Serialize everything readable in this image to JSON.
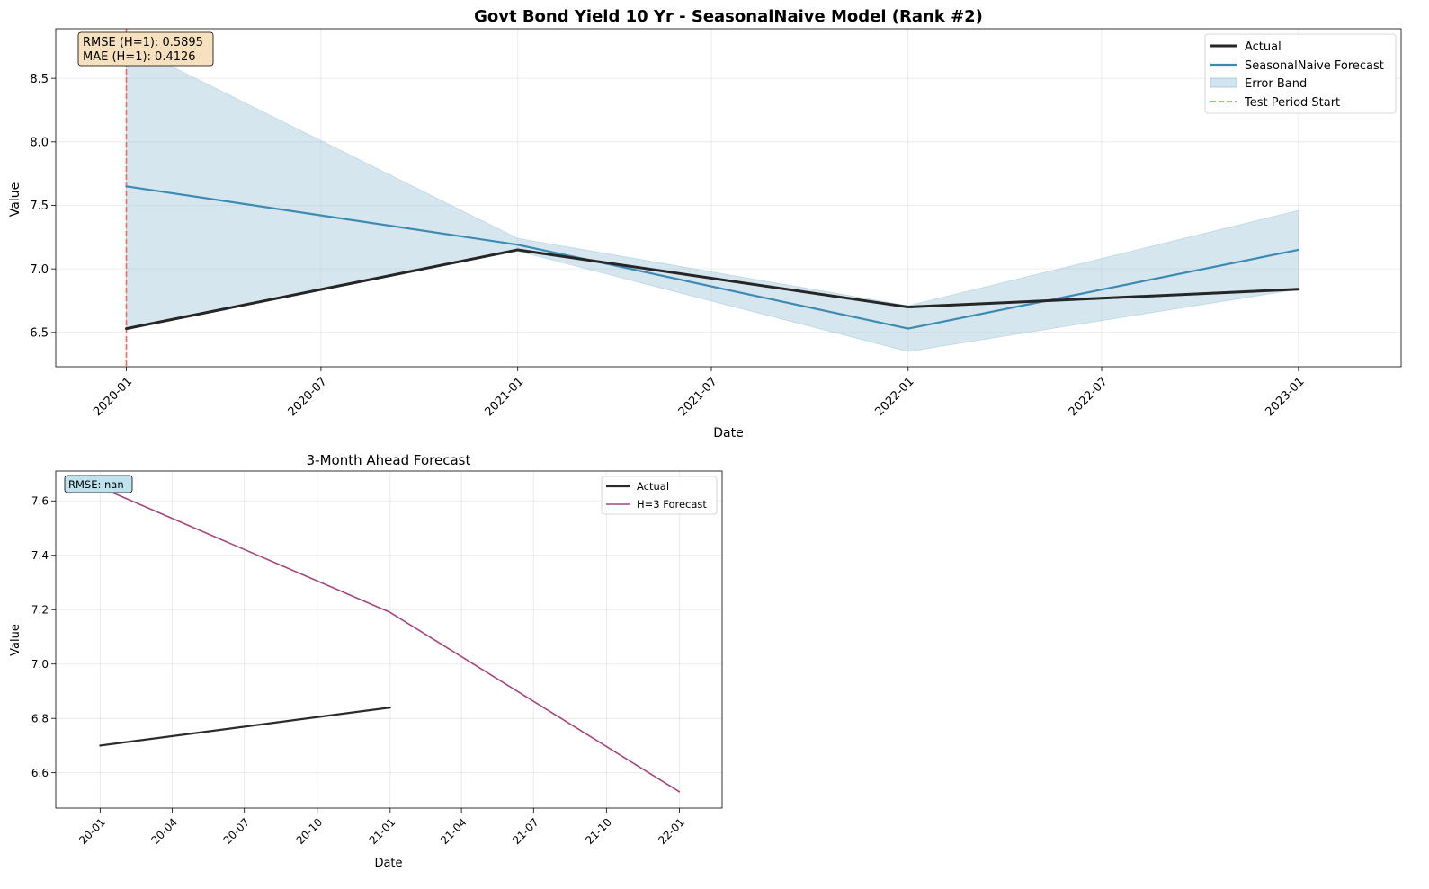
{
  "chart_data": [
    {
      "type": "line",
      "title": "Govt Bond Yield 10 Yr - SeasonalNaive Model (Rank #2)",
      "xlabel": "Date",
      "ylabel": "Value",
      "x": [
        "2020-01-01",
        "2021-01-01",
        "2022-01-01",
        "2023-01-01"
      ],
      "xlim": [
        "2019-10-27",
        "2023-04-07"
      ],
      "ylim": [
        6.23,
        8.89
      ],
      "xticks": [
        "2020-01",
        "2020-07",
        "2021-01",
        "2021-07",
        "2022-01",
        "2022-07",
        "2023-01"
      ],
      "yticks": [
        "6.5",
        "7.0",
        "7.5",
        "8.0",
        "8.5"
      ],
      "series": [
        {
          "name": "Actual",
          "values": [
            6.53,
            7.15,
            6.7,
            6.84
          ],
          "color": "#262626"
        },
        {
          "name": "SeasonalNaive Forecast",
          "values": [
            7.65,
            7.19,
            6.53,
            7.15
          ],
          "color": "#3d8bb3"
        }
      ],
      "error_band": {
        "name": "Error Band",
        "lower": [
          6.53,
          7.14,
          6.35,
          6.84
        ],
        "upper": [
          8.77,
          7.24,
          6.71,
          7.46
        ],
        "color": "#9cc4da"
      },
      "vline": {
        "name": "Test Period Start",
        "x": "2020-01-01",
        "color": "#f26b5b"
      },
      "annotation": [
        "RMSE (H=1): 0.5895",
        "MAE (H=1): 0.4126"
      ],
      "legend_position": "top-right",
      "grid": true
    },
    {
      "type": "line",
      "title": "3-Month Ahead Forecast",
      "xlabel": "Date",
      "ylabel": "Value",
      "xlim": [
        "2019-11-06",
        "2022-02-24"
      ],
      "ylim": [
        6.47,
        7.71
      ],
      "xticks": [
        "20-01",
        "20-04",
        "20-07",
        "20-10",
        "21-01",
        "21-04",
        "21-07",
        "21-10",
        "22-01"
      ],
      "yticks": [
        "6.6",
        "6.8",
        "7.0",
        "7.2",
        "7.4",
        "7.6"
      ],
      "series": [
        {
          "name": "Actual",
          "x": [
            "2020-01-01",
            "2021-01-01"
          ],
          "values": [
            6.7,
            6.84
          ],
          "color": "#2b2b2b"
        },
        {
          "name": "H=3 Forecast",
          "x": [
            "2020-01-01",
            "2021-01-01",
            "2022-01-01"
          ],
          "values": [
            7.65,
            7.19,
            6.53
          ],
          "color": "#a3457b"
        }
      ],
      "annotation": [
        "RMSE: nan"
      ],
      "legend_position": "top-right",
      "grid": true
    }
  ]
}
